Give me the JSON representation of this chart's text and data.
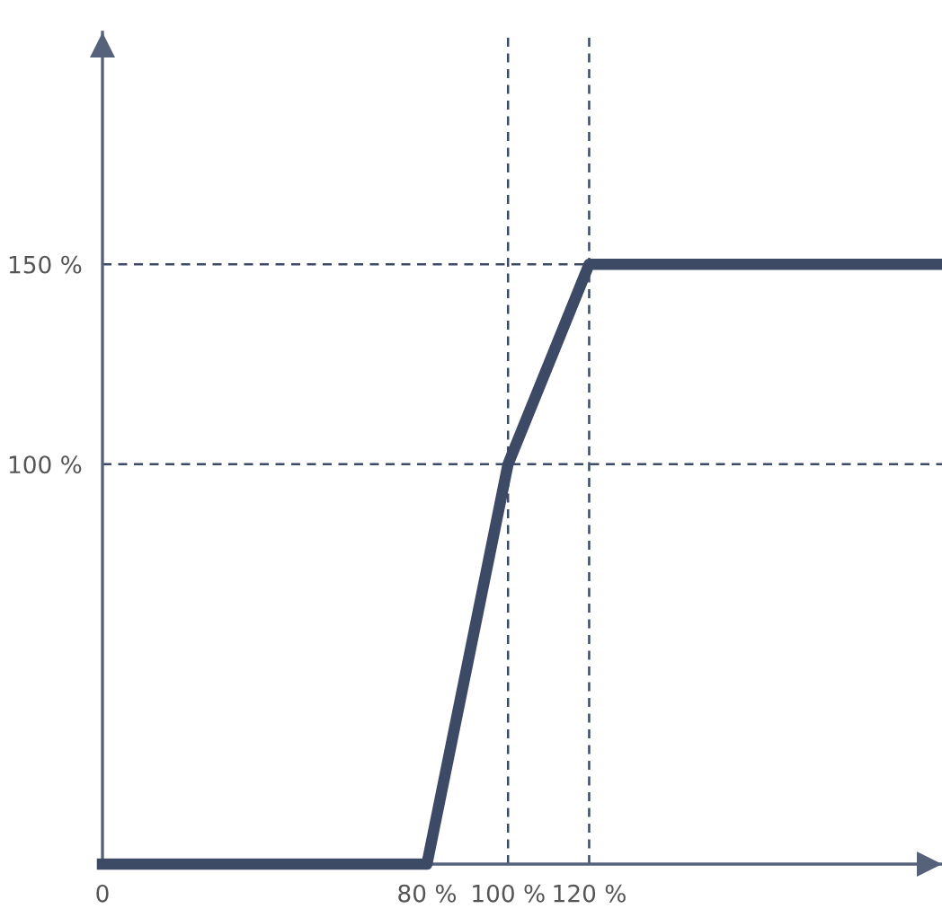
{
  "chart_data": {
    "type": "line",
    "x": [
      0,
      80,
      100,
      120,
      207
    ],
    "series": [
      {
        "color": "#3d4a66",
        "values": [
          0,
          0,
          100,
          150,
          150
        ]
      }
    ],
    "xlim": [
      0,
      207
    ],
    "ylim": [
      0,
      208
    ],
    "xticks": [
      0,
      {
        "value": 80,
        "label": "80 %"
      },
      {
        "value": 100,
        "label": "100 %"
      },
      {
        "value": 120,
        "label": "120 %"
      }
    ],
    "yticks": [
      {
        "value": 100,
        "label": "100 %"
      },
      {
        "value": 150,
        "label": "150 %"
      }
    ],
    "ref_lines": [
      {
        "axis": "x",
        "value": 100,
        "color": "#3d4a66",
        "line_style": "dashed"
      },
      {
        "axis": "x",
        "value": 120,
        "color": "#3d4a66",
        "line_style": "dashed"
      },
      {
        "axis": "y",
        "value": 100,
        "color": "#3d4a66",
        "line_style": "dashed"
      },
      {
        "axis": "y",
        "value": 150,
        "color": "#3d4a66",
        "line_style": "dashed"
      }
    ],
    "grid": false,
    "legend": false,
    "marker": "none",
    "line_style": "solid"
  }
}
